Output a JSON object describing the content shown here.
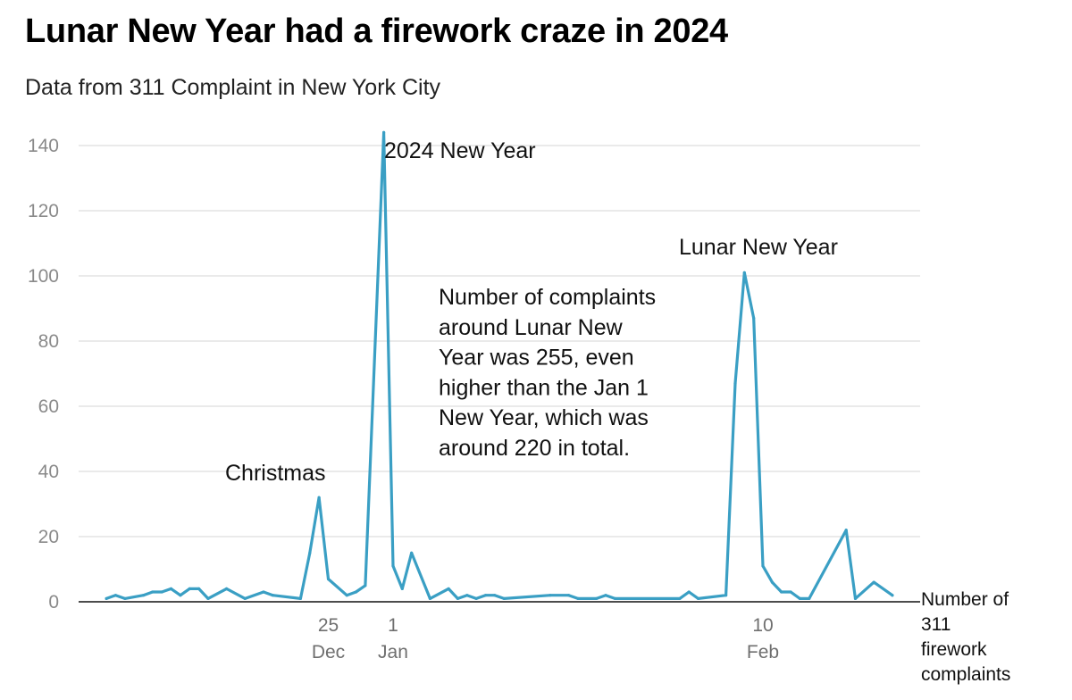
{
  "title": "Lunar New Year had a firework craze in 2024",
  "subtitle": "Data from 311 Complaint in New York City",
  "chart_data": {
    "type": "line",
    "title": "Lunar New Year had a firework craze in 2024",
    "subtitle": "Data from 311 Complaint in New York City",
    "y_label": "Number of 311 firework complaints",
    "y_label_lines": [
      "Number of",
      "311",
      "firework",
      "complaints"
    ],
    "ylim": [
      0,
      140
    ],
    "yticks": [
      0,
      20,
      40,
      60,
      80,
      100,
      120,
      140
    ],
    "grid": true,
    "line_color": "#3a9fc4",
    "x_ticks": [
      {
        "date": "2023-12-25",
        "day": "25",
        "month": "Dec"
      },
      {
        "date": "2024-01-01",
        "day": "1",
        "month": "Jan"
      },
      {
        "date": "2024-02-10",
        "day": "10",
        "month": "Feb"
      }
    ],
    "series": [
      {
        "points": [
          [
            "2023-12-01",
            1
          ],
          [
            "2023-12-02",
            2
          ],
          [
            "2023-12-03",
            1
          ],
          [
            "2023-12-05",
            2
          ],
          [
            "2023-12-06",
            3
          ],
          [
            "2023-12-07",
            3
          ],
          [
            "2023-12-08",
            4
          ],
          [
            "2023-12-09",
            2
          ],
          [
            "2023-12-10",
            4
          ],
          [
            "2023-12-11",
            4
          ],
          [
            "2023-12-12",
            1
          ],
          [
            "2023-12-14",
            4
          ],
          [
            "2023-12-16",
            1
          ],
          [
            "2023-12-18",
            3
          ],
          [
            "2023-12-19",
            2
          ],
          [
            "2023-12-22",
            1
          ],
          [
            "2023-12-23",
            15
          ],
          [
            "2023-12-24",
            32
          ],
          [
            "2023-12-25",
            7
          ],
          [
            "2023-12-27",
            2
          ],
          [
            "2023-12-28",
            3
          ],
          [
            "2023-12-29",
            5
          ],
          [
            "2023-12-31",
            144
          ],
          [
            "2024-01-01",
            11
          ],
          [
            "2024-01-02",
            4
          ],
          [
            "2024-01-03",
            15
          ],
          [
            "2024-01-05",
            1
          ],
          [
            "2024-01-07",
            4
          ],
          [
            "2024-01-08",
            1
          ],
          [
            "2024-01-09",
            2
          ],
          [
            "2024-01-10",
            1
          ],
          [
            "2024-01-11",
            2
          ],
          [
            "2024-01-12",
            2
          ],
          [
            "2024-01-13",
            1
          ],
          [
            "2024-01-18",
            2
          ],
          [
            "2024-01-20",
            2
          ],
          [
            "2024-01-21",
            1
          ],
          [
            "2024-01-23",
            1
          ],
          [
            "2024-01-24",
            2
          ],
          [
            "2024-01-25",
            1
          ],
          [
            "2024-02-01",
            1
          ],
          [
            "2024-02-02",
            3
          ],
          [
            "2024-02-03",
            1
          ],
          [
            "2024-02-06",
            2
          ],
          [
            "2024-02-07",
            67
          ],
          [
            "2024-02-08",
            101
          ],
          [
            "2024-02-09",
            87
          ],
          [
            "2024-02-10",
            11
          ],
          [
            "2024-02-11",
            6
          ],
          [
            "2024-02-12",
            3
          ],
          [
            "2024-02-13",
            3
          ],
          [
            "2024-02-14",
            1
          ],
          [
            "2024-02-15",
            1
          ],
          [
            "2024-02-19",
            22
          ],
          [
            "2024-02-20",
            1
          ],
          [
            "2024-02-22",
            6
          ],
          [
            "2024-02-24",
            2
          ]
        ]
      }
    ],
    "annotations": [
      {
        "text": "Christmas",
        "lines": [
          "Christmas"
        ]
      },
      {
        "text": "2024 New Year",
        "lines": [
          "2024 New Year"
        ]
      },
      {
        "text": "Lunar New Year",
        "lines": [
          "Lunar New Year"
        ]
      },
      {
        "text": "Number of complaints around Lunar New Year was 255, even higher than the Jan 1 New Year, which was around 220 in total.",
        "lines": [
          "Number of complaints",
          "around Lunar New",
          "Year was 255, even",
          "higher than the Jan 1",
          "New Year, which was",
          "around 220 in total."
        ]
      }
    ]
  }
}
